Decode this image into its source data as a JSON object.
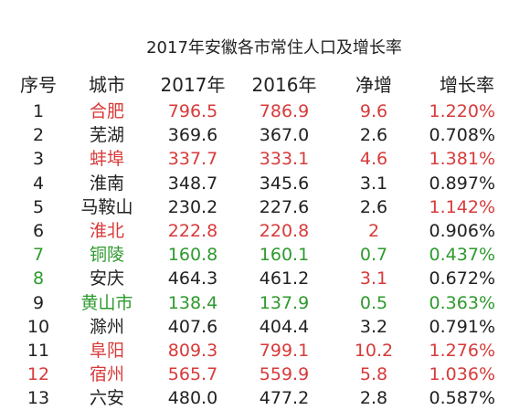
{
  "title": "2017年安徽各市常住人口及增长率",
  "headers": [
    "序号",
    "城市",
    "2017年",
    "2016年",
    "净增",
    "增长率"
  ],
  "colors": {
    "black": "#222222",
    "red": "#d83a3a",
    "green": "#2e9a2e"
  },
  "rows": [
    {
      "idx": "1",
      "city": "合肥",
      "y2017": "796.5",
      "y2016": "786.9",
      "increase": "9.6",
      "rate": "1.220%",
      "color": {
        "idx": "black",
        "city": "red",
        "y2017": "red",
        "y2016": "red",
        "increase": "red",
        "rate": "red"
      }
    },
    {
      "idx": "2",
      "city": "芜湖",
      "y2017": "369.6",
      "y2016": "367.0",
      "increase": "2.6",
      "rate": "0.708%",
      "color": {
        "idx": "black",
        "city": "black",
        "y2017": "black",
        "y2016": "black",
        "increase": "black",
        "rate": "black"
      }
    },
    {
      "idx": "3",
      "city": "蚌埠",
      "y2017": "337.7",
      "y2016": "333.1",
      "increase": "4.6",
      "rate": "1.381%",
      "color": {
        "idx": "black",
        "city": "red",
        "y2017": "red",
        "y2016": "red",
        "increase": "red",
        "rate": "red"
      }
    },
    {
      "idx": "4",
      "city": "淮南",
      "y2017": "348.7",
      "y2016": "345.6",
      "increase": "3.1",
      "rate": "0.897%",
      "color": {
        "idx": "black",
        "city": "black",
        "y2017": "black",
        "y2016": "black",
        "increase": "black",
        "rate": "black"
      }
    },
    {
      "idx": "5",
      "city": "马鞍山",
      "y2017": "230.2",
      "y2016": "227.6",
      "increase": "2.6",
      "rate": "1.142%",
      "color": {
        "idx": "black",
        "city": "black",
        "y2017": "black",
        "y2016": "black",
        "increase": "black",
        "rate": "red"
      }
    },
    {
      "idx": "6",
      "city": "淮北",
      "y2017": "222.8",
      "y2016": "220.8",
      "increase": "2",
      "rate": "0.906%",
      "color": {
        "idx": "black",
        "city": "red",
        "y2017": "red",
        "y2016": "red",
        "increase": "red",
        "rate": "black"
      }
    },
    {
      "idx": "7",
      "city": "铜陵",
      "y2017": "160.8",
      "y2016": "160.1",
      "increase": "0.7",
      "rate": "0.437%",
      "color": {
        "idx": "green",
        "city": "green",
        "y2017": "green",
        "y2016": "green",
        "increase": "green",
        "rate": "green"
      }
    },
    {
      "idx": "8",
      "city": "安庆",
      "y2017": "464.3",
      "y2016": "461.2",
      "increase": "3.1",
      "rate": "0.672%",
      "color": {
        "idx": "green",
        "city": "black",
        "y2017": "black",
        "y2016": "black",
        "increase": "red",
        "rate": "black"
      }
    },
    {
      "idx": "9",
      "city": "黄山市",
      "y2017": "138.4",
      "y2016": "137.9",
      "increase": "0.5",
      "rate": "0.363%",
      "color": {
        "idx": "black",
        "city": "green",
        "y2017": "green",
        "y2016": "green",
        "increase": "green",
        "rate": "green"
      }
    },
    {
      "idx": "10",
      "city": "滁州",
      "y2017": "407.6",
      "y2016": "404.4",
      "increase": "3.2",
      "rate": "0.791%",
      "color": {
        "idx": "black",
        "city": "black",
        "y2017": "black",
        "y2016": "black",
        "increase": "black",
        "rate": "black"
      }
    },
    {
      "idx": "11",
      "city": "阜阳",
      "y2017": "809.3",
      "y2016": "799.1",
      "increase": "10.2",
      "rate": "1.276%",
      "color": {
        "idx": "black",
        "city": "red",
        "y2017": "red",
        "y2016": "red",
        "increase": "red",
        "rate": "red"
      }
    },
    {
      "idx": "12",
      "city": "宿州",
      "y2017": "565.7",
      "y2016": "559.9",
      "increase": "5.8",
      "rate": "1.036%",
      "color": {
        "idx": "red",
        "city": "red",
        "y2017": "red",
        "y2016": "red",
        "increase": "red",
        "rate": "red"
      }
    },
    {
      "idx": "13",
      "city": "六安",
      "y2017": "480.0",
      "y2016": "477.2",
      "increase": "2.8",
      "rate": "0.587%",
      "color": {
        "idx": "black",
        "city": "black",
        "y2017": "black",
        "y2016": "black",
        "increase": "black",
        "rate": "black"
      }
    }
  ]
}
